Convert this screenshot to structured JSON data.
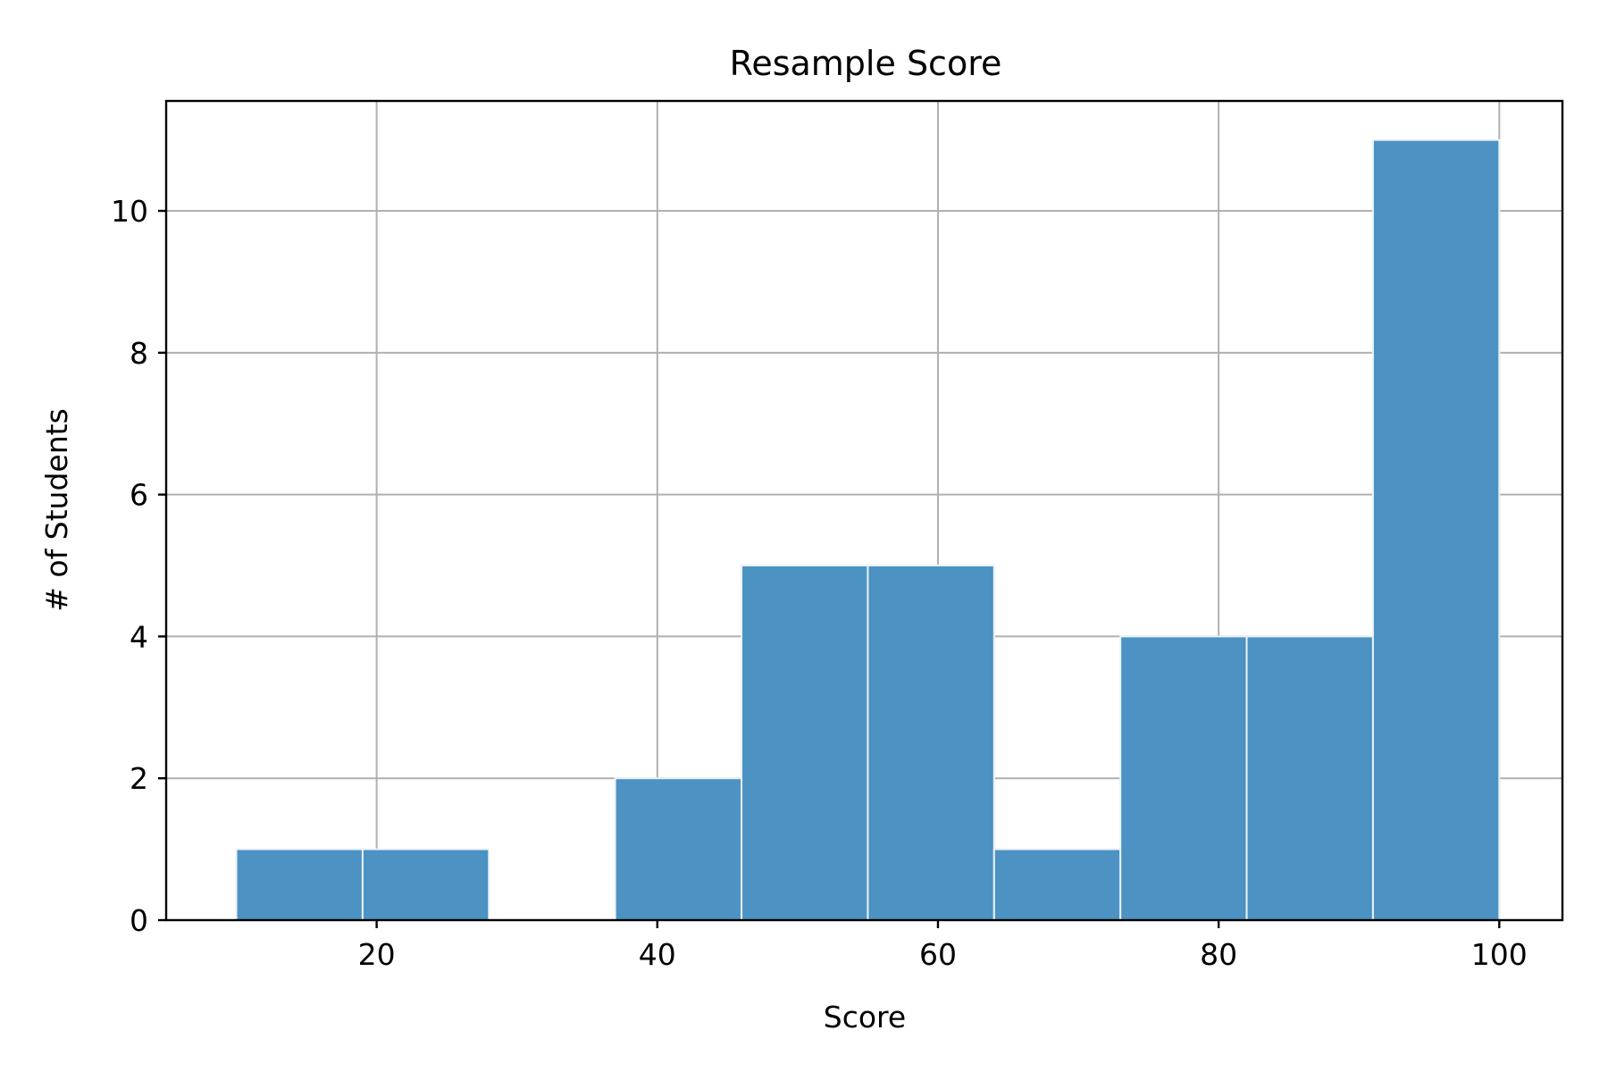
{
  "chart_data": {
    "type": "bar",
    "title": "Resample Score",
    "xlabel": "Score",
    "ylabel": "# of Students",
    "xlim": [
      5,
      104.5
    ],
    "ylim": [
      0,
      11.55
    ],
    "xticks": [
      20,
      40,
      60,
      80,
      100
    ],
    "yticks": [
      0,
      2,
      4,
      6,
      8,
      10
    ],
    "grid": true,
    "bar_color": "#4c92c3",
    "bins": [
      {
        "x0": 10,
        "x1": 19,
        "count": 1
      },
      {
        "x0": 19,
        "x1": 28,
        "count": 1
      },
      {
        "x0": 28,
        "x1": 37,
        "count": 0
      },
      {
        "x0": 37,
        "x1": 46,
        "count": 2
      },
      {
        "x0": 46,
        "x1": 55,
        "count": 5
      },
      {
        "x0": 55,
        "x1": 64,
        "count": 5
      },
      {
        "x0": 64,
        "x1": 73,
        "count": 1
      },
      {
        "x0": 73,
        "x1": 82,
        "count": 4
      },
      {
        "x0": 82,
        "x1": 91,
        "count": 4
      },
      {
        "x0": 91,
        "x1": 100,
        "count": 11
      }
    ]
  }
}
